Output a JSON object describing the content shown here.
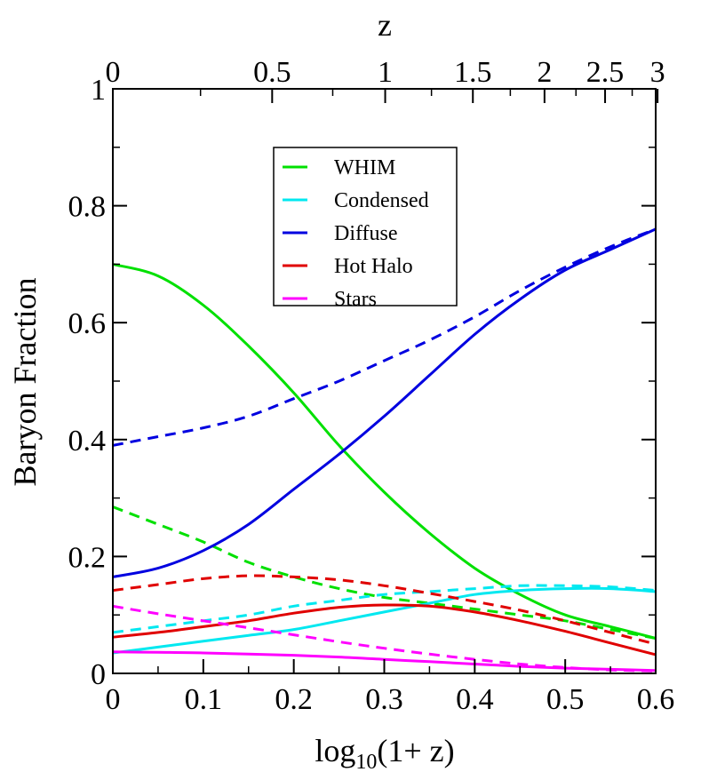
{
  "chart_data": {
    "type": "line",
    "xlabel_main": "log",
    "xlabel_sub": "10",
    "xlabel_rest": "(1+ z)",
    "x2label": "z",
    "ylabel": "Baryon Fraction",
    "xlim": [
      0,
      0.6
    ],
    "ylim": [
      0,
      1
    ],
    "x_ticks": [
      0,
      0.1,
      0.2,
      0.3,
      0.4,
      0.5,
      0.6
    ],
    "x_tick_labels": [
      "0",
      "0.1",
      "0.2",
      "0.3",
      "0.4",
      "0.5",
      "0.6"
    ],
    "y_ticks": [
      0,
      0.2,
      0.4,
      0.6,
      0.8,
      1
    ],
    "y_tick_labels": [
      "0",
      "0.2",
      "0.4",
      "0.6",
      "0.8",
      "1"
    ],
    "z_ticks": [
      0,
      0.5,
      1,
      1.5,
      2,
      2.5,
      3
    ],
    "z_tick_labels": [
      "0",
      "0.5",
      "1",
      "1.5",
      "2",
      "2.5",
      "3"
    ],
    "legend_placement": "upper-center",
    "grid": false,
    "x": [
      0,
      0.05,
      0.1,
      0.15,
      0.2,
      0.25,
      0.3,
      0.35,
      0.4,
      0.45,
      0.5,
      0.55,
      0.6
    ],
    "series": [
      {
        "name": "WHIM",
        "color": "#00e000",
        "solid": [
          0.7,
          0.68,
          0.63,
          0.56,
          0.48,
          0.39,
          0.31,
          0.24,
          0.18,
          0.135,
          0.1,
          0.08,
          0.06
        ],
        "dashed": [
          0.285,
          0.255,
          0.225,
          0.19,
          0.165,
          0.145,
          0.13,
          0.12,
          0.11,
          0.1,
          0.09,
          0.075,
          0.06
        ]
      },
      {
        "name": "Condensed",
        "color": "#00e8f0",
        "solid": [
          0.035,
          0.045,
          0.055,
          0.065,
          0.075,
          0.09,
          0.105,
          0.12,
          0.135,
          0.142,
          0.145,
          0.145,
          0.14
        ],
        "dashed": [
          0.07,
          0.08,
          0.09,
          0.1,
          0.115,
          0.125,
          0.135,
          0.14,
          0.145,
          0.15,
          0.15,
          0.148,
          0.142
        ]
      },
      {
        "name": "Diffuse",
        "color": "#0000e0",
        "solid": [
          0.165,
          0.18,
          0.21,
          0.255,
          0.315,
          0.375,
          0.44,
          0.51,
          0.58,
          0.64,
          0.69,
          0.725,
          0.76
        ],
        "dashed": [
          0.39,
          0.405,
          0.42,
          0.44,
          0.47,
          0.5,
          0.535,
          0.57,
          0.61,
          0.655,
          0.695,
          0.73,
          0.76
        ]
      },
      {
        "name": "Hot Halo",
        "color": "#e00000",
        "solid": [
          0.062,
          0.07,
          0.08,
          0.09,
          0.103,
          0.113,
          0.117,
          0.115,
          0.105,
          0.09,
          0.072,
          0.052,
          0.032
        ],
        "dashed": [
          0.142,
          0.152,
          0.162,
          0.167,
          0.165,
          0.16,
          0.15,
          0.137,
          0.123,
          0.108,
          0.09,
          0.07,
          0.05
        ]
      },
      {
        "name": "Stars",
        "color": "#ff00ff",
        "solid": [
          0.037,
          0.036,
          0.035,
          0.033,
          0.031,
          0.028,
          0.024,
          0.02,
          0.016,
          0.012,
          0.009,
          0.007,
          0.005
        ],
        "dashed": [
          0.115,
          0.102,
          0.09,
          0.078,
          0.066,
          0.054,
          0.043,
          0.033,
          0.024,
          0.016,
          0.01,
          0.006,
          0.004
        ]
      }
    ]
  }
}
